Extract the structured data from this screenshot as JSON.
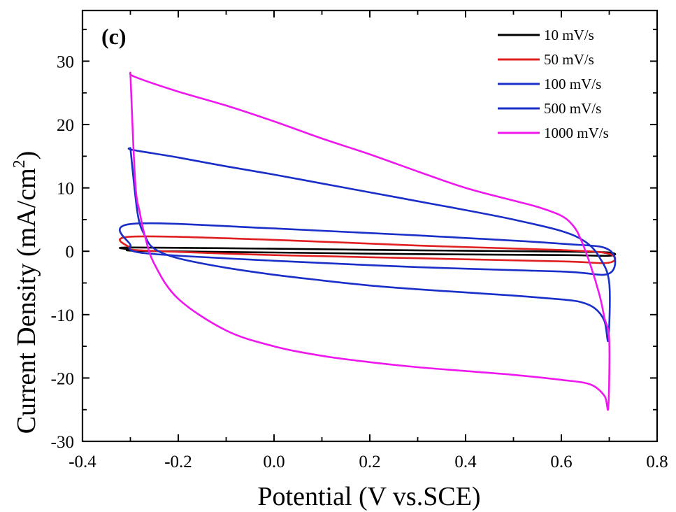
{
  "chart_data": {
    "type": "line",
    "panel_label": "(c)",
    "xlabel": "Potential (V vs.SCE)",
    "ylabel_main": "Current Density (mA/cm",
    "ylabel_sup": "2",
    "ylabel_close": ")",
    "xlim": [
      -0.4,
      0.8
    ],
    "ylim": [
      -30,
      38
    ],
    "xticks": [
      -0.4,
      -0.2,
      0.0,
      0.2,
      0.4,
      0.6,
      0.8
    ],
    "xtick_labels": [
      "-0.4",
      "-0.2",
      "0.0",
      "0.2",
      "0.4",
      "0.6",
      "0.8"
    ],
    "yticks": [
      -30,
      -20,
      -10,
      0,
      10,
      20,
      30
    ],
    "ytick_labels": [
      "-30",
      "-20",
      "-10",
      "0",
      "10",
      "20",
      "30"
    ],
    "grid": false,
    "legend_position": "top-right",
    "series": [
      {
        "name": "10 mV/s",
        "color": "#000000",
        "x": [
          -0.3,
          -0.3,
          0.0,
          0.3,
          0.6,
          0.7,
          0.7,
          0.6,
          0.3,
          0.0,
          -0.28,
          -0.3
        ],
        "y": [
          0.3,
          0.6,
          0.4,
          0.15,
          -0.05,
          -0.2,
          -0.7,
          -0.6,
          -0.45,
          -0.2,
          0.05,
          0.3
        ]
      },
      {
        "name": "50 mV/s",
        "color": "#e02020",
        "x": [
          -0.3,
          -0.3,
          0.0,
          0.3,
          0.6,
          0.7,
          0.7,
          0.6,
          0.3,
          0.0,
          -0.27,
          -0.3
        ],
        "y": [
          0.5,
          2.3,
          1.8,
          0.9,
          0.2,
          -0.4,
          -1.8,
          -1.6,
          -1.1,
          -0.6,
          0.1,
          0.5
        ]
      },
      {
        "name": "100 mV/s",
        "color": "#1a2ec8",
        "x": [
          -0.3,
          -0.3,
          0.0,
          0.3,
          0.6,
          0.7,
          0.7,
          0.6,
          0.3,
          0.0,
          -0.27,
          -0.3
        ],
        "y": [
          1.0,
          4.3,
          3.6,
          2.5,
          1.2,
          0.2,
          -3.5,
          -3.2,
          -2.5,
          -1.5,
          -0.3,
          1.0
        ]
      },
      {
        "name": "500 mV/s",
        "color": "#1a2ec8",
        "x": [
          -0.3,
          -0.295,
          -0.2,
          -0.1,
          0.0,
          0.1,
          0.2,
          0.3,
          0.4,
          0.5,
          0.6,
          0.65,
          0.68,
          0.7,
          0.698,
          0.69,
          0.67,
          0.64,
          0.6,
          0.5,
          0.4,
          0.3,
          0.2,
          0.1,
          0.0,
          -0.1,
          -0.2,
          -0.25,
          -0.27,
          -0.285,
          -0.3
        ],
        "y": [
          16.3,
          16.0,
          14.8,
          13.4,
          12.1,
          10.7,
          9.3,
          7.9,
          6.5,
          5.0,
          3.2,
          1.5,
          -1.0,
          -5.0,
          -14.0,
          -11.0,
          -9.0,
          -8.0,
          -7.6,
          -7.0,
          -6.5,
          -6.0,
          -5.4,
          -4.6,
          -3.7,
          -2.6,
          -1.1,
          0.4,
          2.5,
          6.0,
          16.3
        ]
      },
      {
        "name": "1000 mV/s",
        "color": "#ee18ee",
        "x": [
          -0.3,
          -0.29,
          -0.2,
          -0.1,
          0.0,
          0.1,
          0.2,
          0.3,
          0.4,
          0.5,
          0.55,
          0.6,
          0.625,
          0.64,
          0.66,
          0.68,
          0.69,
          0.7,
          0.698,
          0.69,
          0.66,
          0.6,
          0.5,
          0.4,
          0.3,
          0.2,
          0.1,
          0.0,
          -0.1,
          -0.2,
          -0.25,
          -0.27,
          -0.28,
          -0.29,
          -0.3
        ],
        "y": [
          28.2,
          27.5,
          25.2,
          23.0,
          20.5,
          17.8,
          15.3,
          12.6,
          10.0,
          8.0,
          7.0,
          5.6,
          4.0,
          2.0,
          -2.0,
          -7.0,
          -10.5,
          -14.0,
          -24.6,
          -22.8,
          -21.0,
          -20.3,
          -19.5,
          -18.9,
          -18.3,
          -17.5,
          -16.5,
          -15.0,
          -12.5,
          -7.5,
          -2.0,
          2.5,
          6.0,
          11.0,
          28.2
        ]
      }
    ]
  }
}
